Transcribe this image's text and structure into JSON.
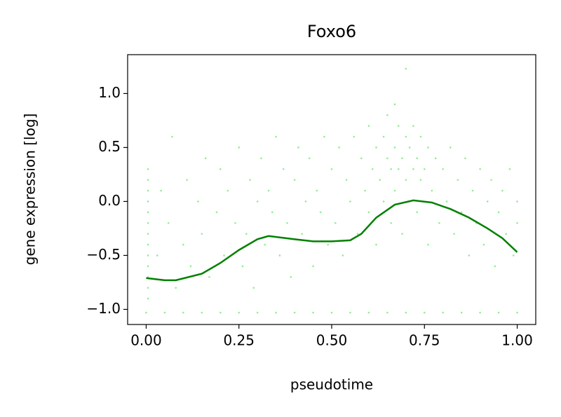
{
  "chart_data": {
    "type": "scatter",
    "title": "Foxo6",
    "x_label": "pseudotime",
    "y_label": "gene expression [log]",
    "xlim": [
      -0.05,
      1.05
    ],
    "ylim": [
      -1.14,
      1.36
    ],
    "xticks": [
      {
        "value": 0,
        "label": "0.00"
      },
      {
        "value": 0.25,
        "label": "0.25"
      },
      {
        "value": 0.5,
        "label": "0.50"
      },
      {
        "value": 0.75,
        "label": "0.75"
      },
      {
        "value": 1,
        "label": "1.00"
      }
    ],
    "yticks": [
      {
        "value": -1,
        "label": "−1.0"
      },
      {
        "value": -0.5,
        "label": "−0.5"
      },
      {
        "value": 0,
        "label": "0.0"
      },
      {
        "value": 0.5,
        "label": "0.5"
      },
      {
        "value": 1,
        "label": "1.0"
      }
    ],
    "series": [
      {
        "type": "scatter",
        "color": "#90ee90",
        "x": [
          0,
          0.05,
          0.1,
          0.15,
          0.2,
          0.25,
          0.3,
          0.35,
          0.4,
          0.45,
          0.5,
          0.55,
          0.6,
          0.65,
          0.7,
          0.75,
          0.8,
          0.85,
          0.9,
          0.95,
          1.0,
          0.005,
          0.005,
          0.005,
          0.005,
          0.005,
          0.005,
          0.005,
          0.005,
          0.005,
          0.005,
          0.005,
          0.005,
          0.005,
          0.03,
          0.04,
          0.06,
          0.07,
          0.08,
          0.1,
          0.11,
          0.12,
          0.14,
          0.15,
          0.16,
          0.17,
          0.19,
          0.2,
          0.21,
          0.22,
          0.24,
          0.25,
          0.26,
          0.27,
          0.28,
          0.29,
          0.3,
          0.31,
          0.32,
          0.33,
          0.34,
          0.35,
          0.36,
          0.37,
          0.38,
          0.39,
          0.4,
          0.41,
          0.42,
          0.43,
          0.44,
          0.45,
          0.46,
          0.47,
          0.48,
          0.49,
          0.5,
          0.51,
          0.52,
          0.53,
          0.54,
          0.55,
          0.56,
          0.57,
          0.58,
          0.59,
          0.6,
          0.6,
          0.61,
          0.62,
          0.62,
          0.63,
          0.64,
          0.64,
          0.65,
          0.65,
          0.66,
          0.66,
          0.67,
          0.67,
          0.68,
          0.68,
          0.69,
          0.69,
          0.7,
          0.7,
          0.71,
          0.71,
          0.72,
          0.72,
          0.73,
          0.73,
          0.74,
          0.74,
          0.75,
          0.76,
          0.76,
          0.77,
          0.78,
          0.79,
          0.8,
          0.81,
          0.82,
          0.83,
          0.84,
          0.85,
          0.86,
          0.87,
          0.88,
          0.89,
          0.9,
          0.91,
          0.92,
          0.93,
          0.94,
          0.95,
          0.96,
          0.97,
          0.98,
          0.99,
          1.0,
          1.0,
          0.7,
          0.67
        ],
        "values": [
          -1.03,
          -1.03,
          -1.03,
          -1.03,
          -1.03,
          -1.03,
          -1.03,
          -1.03,
          -1.03,
          -1.03,
          -1.03,
          -1.03,
          -1.03,
          -1.03,
          -1.03,
          -1.03,
          -1.03,
          -1.03,
          -1.03,
          -1.03,
          -1.03,
          -0.9,
          -0.7,
          -0.5,
          -0.3,
          -0.1,
          0.1,
          0.3,
          -0.8,
          -0.6,
          -0.4,
          -0.2,
          0.0,
          0.2,
          -0.5,
          0.1,
          -0.2,
          0.6,
          -0.8,
          -0.4,
          0.2,
          -0.6,
          0.0,
          -0.3,
          0.4,
          -0.7,
          -0.1,
          0.3,
          -0.5,
          0.1,
          -0.2,
          0.5,
          -0.6,
          -0.3,
          0.2,
          -0.8,
          0.0,
          0.4,
          -0.4,
          0.1,
          -0.1,
          0.6,
          -0.5,
          0.3,
          -0.2,
          -0.7,
          0.2,
          0.5,
          -0.3,
          0.0,
          0.4,
          -0.6,
          0.1,
          -0.1,
          0.6,
          -0.4,
          0.3,
          -0.2,
          0.5,
          -0.5,
          0.2,
          0.0,
          0.6,
          -0.3,
          0.4,
          0.1,
          0.7,
          -0.1,
          0.3,
          0.5,
          -0.4,
          0.2,
          0.6,
          0.0,
          0.4,
          0.8,
          0.3,
          -0.2,
          0.5,
          0.1,
          0.7,
          0.3,
          0.4,
          -0.3,
          0.6,
          0.2,
          0.5,
          0.0,
          0.3,
          0.7,
          0.4,
          -0.1,
          0.2,
          0.6,
          0.3,
          0.5,
          -0.4,
          0.1,
          0.4,
          -0.2,
          0.3,
          0.0,
          0.5,
          -0.3,
          0.2,
          -0.1,
          0.4,
          -0.5,
          0.1,
          -0.2,
          0.3,
          -0.4,
          0.0,
          0.2,
          -0.6,
          -0.1,
          0.1,
          -0.3,
          0.3,
          -0.5,
          0.0,
          -0.2,
          1.23,
          0.9
        ]
      },
      {
        "type": "line",
        "color": "#008000",
        "x": [
          0,
          0.05,
          0.08,
          0.15,
          0.2,
          0.25,
          0.3,
          0.33,
          0.4,
          0.45,
          0.5,
          0.55,
          0.58,
          0.62,
          0.67,
          0.72,
          0.77,
          0.82,
          0.87,
          0.92,
          0.96,
          1.0
        ],
        "values": [
          -0.71,
          -0.73,
          -0.73,
          -0.67,
          -0.57,
          -0.45,
          -0.35,
          -0.32,
          -0.35,
          -0.37,
          -0.37,
          -0.36,
          -0.3,
          -0.15,
          -0.03,
          0.01,
          -0.01,
          -0.07,
          -0.15,
          -0.25,
          -0.34,
          -0.47
        ]
      }
    ]
  }
}
